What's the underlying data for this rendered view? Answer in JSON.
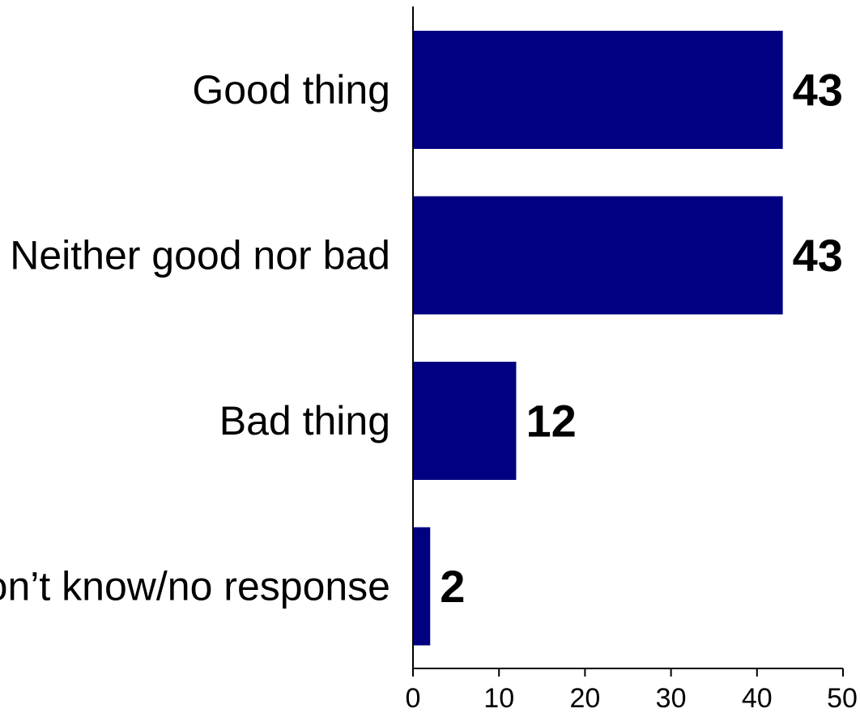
{
  "chart_data": {
    "type": "bar",
    "orientation": "horizontal",
    "categories": [
      "Good thing",
      "Neither good nor bad",
      "Bad thing",
      "Don’t know/no response"
    ],
    "values": [
      43,
      43,
      12,
      2
    ],
    "data_labels": [
      "43",
      "43",
      "12",
      "2"
    ],
    "xlim": [
      0,
      50
    ],
    "x_ticks": [
      0,
      10,
      20,
      30,
      40,
      50
    ],
    "x_tick_labels": [
      "0",
      "10",
      "20",
      "30",
      "40",
      "50"
    ],
    "grid": false,
    "legend": "none",
    "bar_color": "#000080"
  }
}
